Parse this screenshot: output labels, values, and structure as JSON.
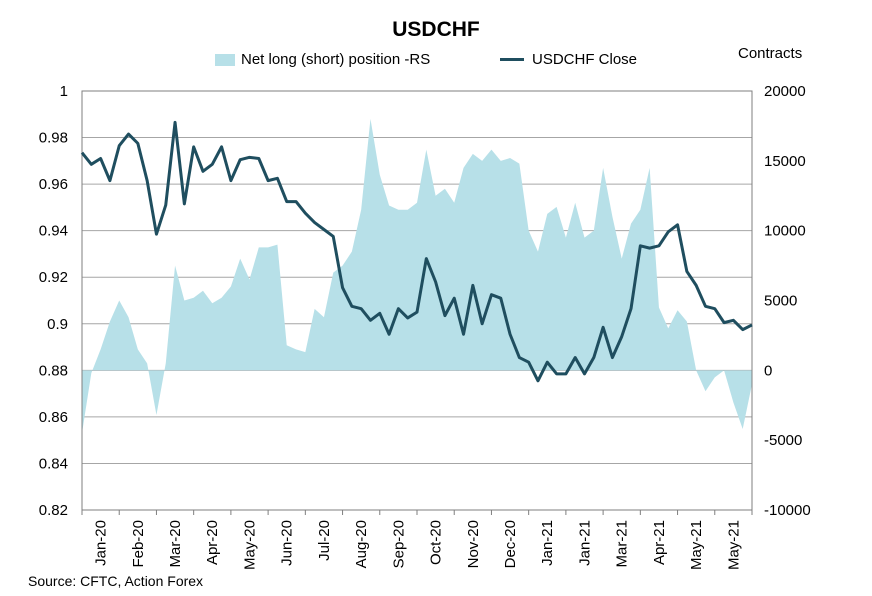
{
  "chart_data": {
    "type": "line",
    "title": "USDCHF",
    "right_axis_title": "Contracts",
    "source": "Source: CFTC, Action Forex",
    "x_tick_labels": [
      "Jan-20",
      "Feb-20",
      "Mar-20",
      "Apr-20",
      "May-20",
      "Jun-20",
      "Jul-20",
      "Aug-20",
      "Sep-20",
      "Oct-20",
      "Nov-20",
      "Dec-20",
      "Jan-21",
      "Jan-21",
      "Mar-21",
      "Apr-21",
      "May-21",
      "May-21"
    ],
    "x_range": [
      0,
      72
    ],
    "left_axis": {
      "min": 0.82,
      "max": 1.0,
      "step": 0.02,
      "tick_labels": [
        "0.82",
        "0.84",
        "0.86",
        "0.88",
        "0.9",
        "0.92",
        "0.94",
        "0.96",
        "0.98",
        "1"
      ]
    },
    "right_axis": {
      "min": -10000,
      "max": 20000,
      "step": 5000,
      "tick_labels": [
        "-10000",
        "-5000",
        "0",
        "5000",
        "10000",
        "15000",
        "20000"
      ]
    },
    "grid": true,
    "legend_position": "top",
    "series": [
      {
        "name": "Net long (short) position -RS",
        "kind": "area",
        "axis": "right",
        "color": "#b7e0e8",
        "x": [
          0,
          1,
          2,
          3,
          4,
          5,
          6,
          7,
          8,
          9,
          10,
          11,
          12,
          13,
          14,
          15,
          16,
          17,
          18,
          19,
          20,
          21,
          22,
          23,
          24,
          25,
          26,
          27,
          28,
          29,
          30,
          31,
          32,
          33,
          34,
          35,
          36,
          37,
          38,
          39,
          40,
          41,
          42,
          43,
          44,
          45,
          46,
          47,
          48,
          49,
          50,
          51,
          52,
          53,
          54,
          55,
          56,
          57,
          58,
          59,
          60,
          61,
          62,
          63,
          64,
          65,
          66,
          67,
          68,
          69,
          70,
          71,
          72
        ],
        "values": [
          -4500,
          -200,
          1500,
          3500,
          5000,
          3800,
          1500,
          500,
          -3200,
          500,
          7500,
          5000,
          5200,
          5700,
          4800,
          5200,
          6000,
          8000,
          6500,
          8800,
          8800,
          9000,
          1800,
          1500,
          1300,
          4400,
          3800,
          7000,
          7500,
          8500,
          11500,
          18000,
          14000,
          11800,
          11500,
          11500,
          12000,
          15800,
          12500,
          13000,
          12000,
          14500,
          15500,
          15000,
          15800,
          15000,
          15200,
          14800,
          10000,
          8500,
          11200,
          11700,
          9500,
          12000,
          9500,
          10000,
          14500,
          11000,
          8000,
          10500,
          11500,
          14500,
          4500,
          3000,
          4300,
          3500,
          0,
          -1500,
          -500,
          0,
          -2300,
          -4200,
          -1000
        ]
      },
      {
        "name": "USDCHF Close",
        "kind": "line",
        "axis": "left",
        "color": "#1f4e5f",
        "x": [
          0,
          1,
          2,
          3,
          4,
          5,
          6,
          7,
          8,
          9,
          10,
          11,
          12,
          13,
          14,
          15,
          16,
          17,
          18,
          19,
          20,
          21,
          22,
          23,
          24,
          25,
          26,
          27,
          28,
          29,
          30,
          31,
          32,
          33,
          34,
          35,
          36,
          37,
          38,
          39,
          40,
          41,
          42,
          43,
          44,
          45,
          46,
          47,
          48,
          49,
          50,
          51,
          52,
          53,
          54,
          55,
          56,
          57,
          58,
          59,
          60,
          61,
          62,
          63,
          64,
          65,
          66,
          67,
          68,
          69,
          70,
          71,
          72
        ],
        "values": [
          0.9735,
          0.9685,
          0.971,
          0.9615,
          0.9765,
          0.9815,
          0.9775,
          0.9615,
          0.9385,
          0.951,
          0.9865,
          0.9515,
          0.976,
          0.9655,
          0.9685,
          0.976,
          0.9615,
          0.9705,
          0.9715,
          0.971,
          0.9615,
          0.9625,
          0.9525,
          0.9525,
          0.9475,
          0.9435,
          0.9405,
          0.9375,
          0.9155,
          0.9075,
          0.9065,
          0.9015,
          0.9045,
          0.8955,
          0.9065,
          0.9025,
          0.905,
          0.928,
          0.918,
          0.9035,
          0.911,
          0.8955,
          0.9165,
          0.9,
          0.9125,
          0.911,
          0.8955,
          0.8855,
          0.8835,
          0.8755,
          0.8835,
          0.8785,
          0.8785,
          0.8855,
          0.8785,
          0.8855,
          0.8985,
          0.8855,
          0.8945,
          0.9065,
          0.9335,
          0.9325,
          0.9335,
          0.9395,
          0.9425,
          0.9225,
          0.9165,
          0.9075,
          0.9065,
          0.9005,
          0.9015,
          0.8975,
          0.8995
        ]
      }
    ]
  }
}
